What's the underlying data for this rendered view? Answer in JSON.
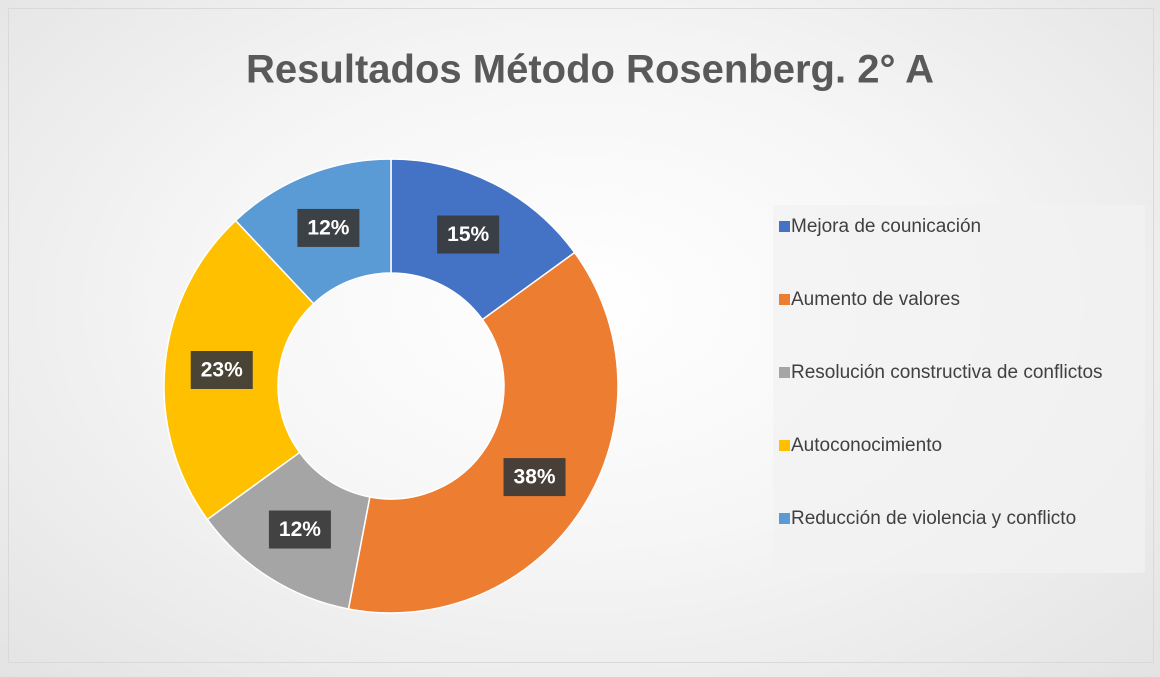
{
  "chart_data": {
    "type": "donut",
    "title": "Resultados Método Rosenberg. 2° A",
    "categories": [
      "Mejora de counicación",
      "Aumento de valores",
      "Resolución constructiva de conflictos",
      "Autoconocimiento",
      "Reducción de violencia y conflicto"
    ],
    "values": [
      15,
      38,
      12,
      23,
      12
    ],
    "value_labels": [
      "15%",
      "38%",
      "12%",
      "23%",
      "12%"
    ],
    "colors": [
      "#4472c4",
      "#ed7d31",
      "#a5a5a5",
      "#ffc000",
      "#5b9bd5"
    ],
    "legend": "right"
  }
}
